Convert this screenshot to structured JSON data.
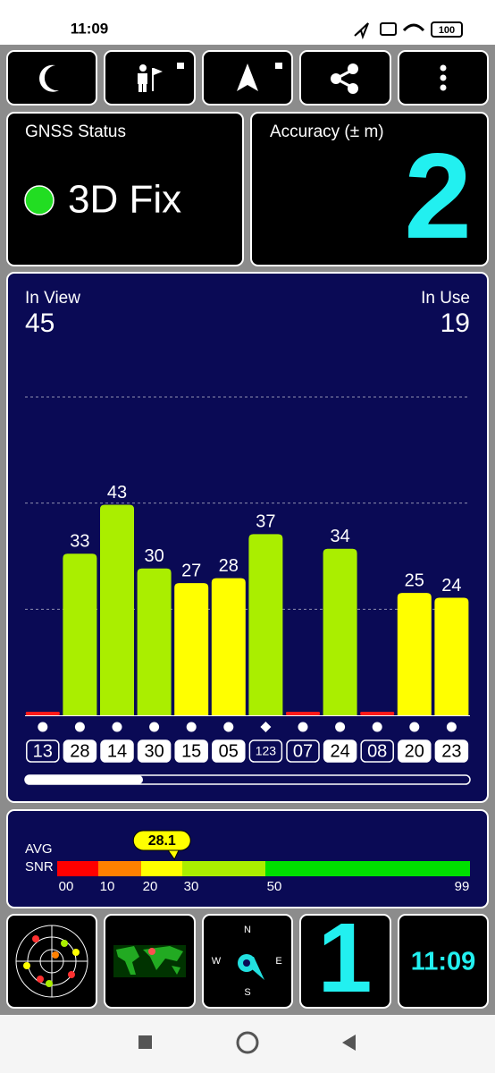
{
  "status_bar": {
    "time": "11:09",
    "battery": "100"
  },
  "gnss_status": {
    "title": "GNSS Status",
    "fix": "3D Fix"
  },
  "accuracy": {
    "title": "Accuracy (± m)",
    "value": 2
  },
  "in_view": {
    "label": "In View",
    "value": 45
  },
  "in_use": {
    "label": "In Use",
    "value": 19
  },
  "chart_data": {
    "type": "bar",
    "categories": [
      "13",
      "28",
      "14",
      "30",
      "15",
      "05",
      "123",
      "07",
      "24",
      "08",
      "20",
      "23"
    ],
    "values": [
      0,
      33,
      43,
      30,
      27,
      28,
      37,
      0,
      34,
      0,
      25,
      24
    ],
    "colors": [
      "#ff1a1a",
      "#aaee00",
      "#aaee00",
      "#aaee00",
      "#ffff00",
      "#ffff00",
      "#aaee00",
      "#ff1a1a",
      "#aaee00",
      "#ff1a1a",
      "#ffff00",
      "#ffff00"
    ],
    "used": [
      false,
      true,
      true,
      true,
      true,
      true,
      false,
      false,
      true,
      false,
      true,
      true
    ],
    "markers": [
      "dot",
      "dot",
      "dot",
      "dot",
      "dot",
      "dot",
      "diamond",
      "dot",
      "dot",
      "dot",
      "dot",
      "dot"
    ],
    "ylim": [
      0,
      65
    ],
    "grid": true
  },
  "snr": {
    "label_top": "AVG",
    "label_bottom": "SNR",
    "average": 28.1,
    "ticks": [
      {
        "value": 0,
        "label": "00"
      },
      10,
      20,
      30,
      50,
      99
    ],
    "colors": [
      "#ff0000",
      "#ff8000",
      "#ffff00",
      "#aaee00",
      "#00e000"
    ]
  },
  "compass": {
    "north": "N",
    "east": "E",
    "south": "S",
    "west": "W"
  },
  "fix_count": 1,
  "clock": "11:09"
}
